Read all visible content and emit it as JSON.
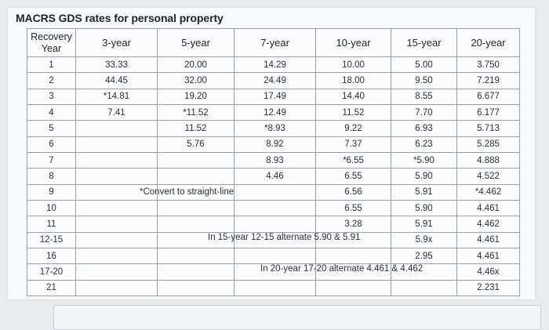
{
  "title": "MACRS GDS rates for personal property",
  "headers": [
    "Recovery Year",
    "3-year",
    "5-year",
    "7-year",
    "10-year",
    "15-year",
    "20-year"
  ],
  "rows": [
    [
      "1",
      "33.33",
      "20.00",
      "14.29",
      "10.00",
      "5.00",
      "3.750"
    ],
    [
      "2",
      "44.45",
      "32.00",
      "24.49",
      "18.00",
      "9.50",
      "7.219"
    ],
    [
      "3",
      "*14.81",
      "19.20",
      "17.49",
      "14.40",
      "8.55",
      "6.677"
    ],
    [
      "4",
      "7.41",
      "*11.52",
      "12.49",
      "11.52",
      "7.70",
      "6.177"
    ],
    [
      "5",
      "",
      "11.52",
      "*8.93",
      "9.22",
      "6.93",
      "5.713"
    ],
    [
      "6",
      "",
      "5.76",
      "8.92",
      "7.37",
      "6.23",
      "5.285"
    ],
    [
      "7",
      "",
      "",
      "8.93",
      "*6.55",
      "*5.90",
      "4.888"
    ],
    [
      "8",
      "",
      "",
      "4.46",
      "6.55",
      "5.90",
      "4.522"
    ],
    [
      "9",
      "",
      "",
      "",
      "6.56",
      "5.91",
      "*4.462"
    ],
    [
      "10",
      "",
      "",
      "",
      "6.55",
      "5.90",
      "4.461"
    ],
    [
      "11",
      "",
      "",
      "",
      "3.28",
      "5.91",
      "4.462"
    ],
    [
      "12-15",
      "",
      "",
      "",
      "",
      "5.9x",
      "4.461"
    ],
    [
      "16",
      "",
      "",
      "",
      "",
      "2.95",
      "4.461"
    ],
    [
      "17-20",
      "",
      "",
      "",
      "",
      "",
      "4.46x"
    ],
    [
      "21",
      "",
      "",
      "",
      "",
      "",
      "2.231"
    ]
  ],
  "notes": {
    "straight_line": "*Convert to straight-line",
    "alt_15": "In 15-year 12-15 alternate 5.90 & 5.91",
    "alt_20": "In 20-year 17-20 alternate 4.461 & 4.462"
  }
}
